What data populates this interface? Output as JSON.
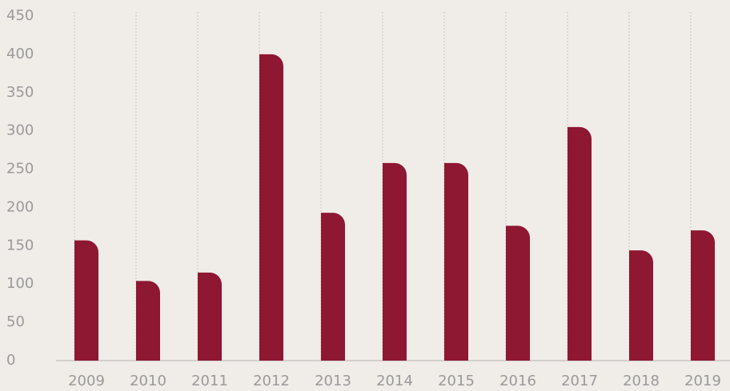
{
  "chart_data": {
    "type": "bar",
    "categories": [
      "2009",
      "2010",
      "2011",
      "2012",
      "2013",
      "2014",
      "2015",
      "2016",
      "2017",
      "2018",
      "2019"
    ],
    "values": [
      157,
      104,
      115,
      400,
      193,
      258,
      258,
      176,
      305,
      144,
      170
    ],
    "color": "#8e1731",
    "ylim": [
      0,
      450
    ],
    "yticks": [
      0,
      50,
      100,
      150,
      200,
      250,
      300,
      350,
      400,
      450
    ],
    "grid": true
  }
}
